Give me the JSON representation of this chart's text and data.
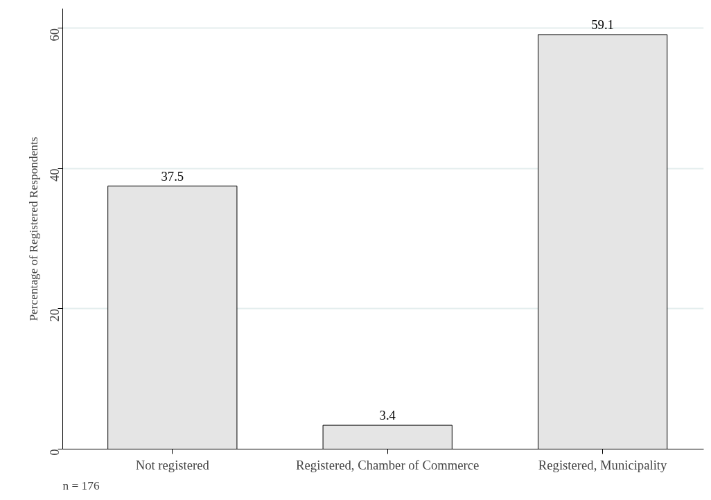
{
  "chart_data": {
    "type": "bar",
    "categories": [
      "Not registered",
      "Registered, Chamber of Commerce",
      "Registered, Municipality"
    ],
    "values": [
      37.5,
      3.4,
      59.1
    ],
    "color": "#e5e5e5",
    "ylabel": "Percentage of Registered Respondents",
    "ylim": [
      0,
      62.8
    ],
    "yticks": [
      0,
      20,
      40,
      60
    ],
    "grid": "y",
    "data_labels": true,
    "annotations": [
      "n = 176"
    ]
  }
}
